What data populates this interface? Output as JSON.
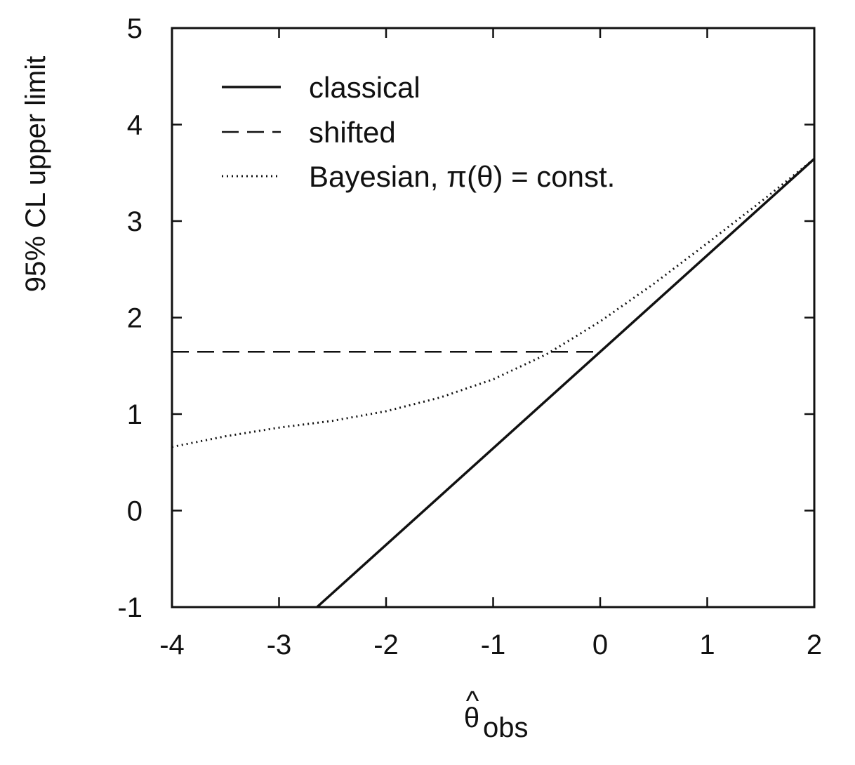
{
  "chart_data": {
    "type": "line",
    "title": "",
    "xlabel": "θ̂obs",
    "xlabel_main": "θ",
    "xlabel_hat": "^",
    "xlabel_sub": "obs",
    "ylabel": "95% CL upper limit",
    "xlim": [
      -4,
      2
    ],
    "ylim": [
      -1,
      5
    ],
    "xticks": [
      -4,
      -3,
      -2,
      -1,
      0,
      1,
      2
    ],
    "yticks": [
      -1,
      0,
      1,
      2,
      3,
      4,
      5
    ],
    "xtick_labels": [
      "-4",
      "-3",
      "-2",
      "-1",
      "0",
      "1",
      "2"
    ],
    "ytick_labels": [
      "-1",
      "0",
      "1",
      "2",
      "3",
      "4",
      "5"
    ],
    "grid": false,
    "legend_position": "top-left",
    "series": [
      {
        "name": "classical",
        "style": "solid",
        "x": [
          -2.645,
          2.0
        ],
        "y": [
          -1.0,
          3.645
        ]
      },
      {
        "name": "shifted",
        "style": "dashed",
        "x": [
          -4.0,
          0.0
        ],
        "y": [
          1.645,
          1.645
        ]
      },
      {
        "name": "Bayesian, π(θ) = const.",
        "style": "dotted",
        "x": [
          -4.0,
          -3.5,
          -3.0,
          -2.5,
          -2.0,
          -1.5,
          -1.0,
          -0.5,
          0.0,
          0.5,
          1.0,
          1.5,
          2.0
        ],
        "y": [
          0.66,
          0.77,
          0.86,
          0.93,
          1.03,
          1.17,
          1.36,
          1.62,
          1.96,
          2.35,
          2.77,
          3.2,
          3.645
        ]
      }
    ]
  }
}
